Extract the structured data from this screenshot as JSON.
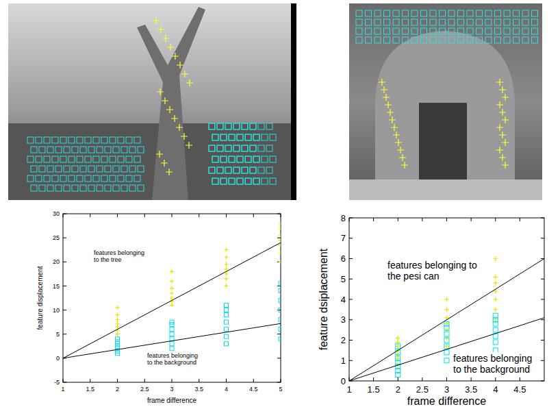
{
  "chart_data": [
    {
      "type": "scatter",
      "xlabel": "frame difference",
      "ylabel": "feature displacement",
      "xlim": [
        1,
        5
      ],
      "ylim": [
        -5,
        30
      ],
      "xticks": [
        1,
        1.5,
        2,
        2.5,
        3,
        3.5,
        4,
        4.5,
        5
      ],
      "yticks": [
        -5,
        0,
        5,
        10,
        15,
        20,
        25,
        30
      ],
      "annotations": [
        "features belonging to the tree",
        "features belonging to the background"
      ],
      "series": [
        {
          "type": "scatter",
          "color": "#e6e600",
          "marker": "plus",
          "x": [
            2,
            2,
            2,
            2,
            2,
            2,
            2,
            3,
            3,
            3,
            3,
            3,
            3,
            3,
            4,
            4,
            4,
            4,
            4,
            4,
            4,
            5,
            5,
            5,
            5,
            5,
            5,
            5
          ],
          "values": [
            5,
            5.8,
            6.5,
            7.2,
            8,
            9,
            10.5,
            11,
            11.8,
            12.5,
            13.5,
            14.5,
            16,
            18,
            15,
            16.5,
            17.5,
            18.5,
            19.5,
            21,
            22.5,
            20,
            22,
            23.5,
            24.5,
            25.5,
            27,
            28
          ]
        },
        {
          "type": "scatter",
          "color": "#00e0ee",
          "marker": "square",
          "x": [
            2,
            2,
            2,
            2,
            2,
            2,
            2,
            3,
            3,
            3,
            3,
            3,
            3,
            3,
            4,
            4,
            4,
            4,
            4,
            4,
            4,
            5,
            5,
            5,
            5,
            5,
            5,
            5
          ],
          "values": [
            1,
            1.5,
            2,
            2.5,
            3,
            3.5,
            4,
            2,
            3,
            4,
            5,
            6,
            7,
            7.5,
            3,
            4.5,
            6,
            7.5,
            9,
            10,
            11,
            4,
            6,
            8,
            10,
            12,
            14,
            15.5
          ]
        },
        {
          "type": "line",
          "color": "#000000",
          "x": [
            1,
            5
          ],
          "values": [
            0,
            24
          ]
        },
        {
          "type": "line",
          "color": "#000000",
          "x": [
            1,
            5
          ],
          "values": [
            0,
            7.2
          ]
        }
      ]
    },
    {
      "type": "scatter",
      "xlabel": "frame difference",
      "ylabel": "feature dsiplacement",
      "xlim": [
        1,
        5
      ],
      "ylim": [
        0,
        8
      ],
      "xticks": [
        1,
        1.5,
        2,
        2.5,
        3,
        3.5,
        4,
        4.5
      ],
      "yticks": [
        0,
        1,
        2,
        3,
        4,
        5,
        6,
        7,
        8
      ],
      "annotations": [
        "features belonging to the pesi can",
        "features belonging to the background"
      ],
      "series": [
        {
          "type": "scatter",
          "color": "#e6e600",
          "marker": "plus",
          "x": [
            2,
            2,
            2,
            2,
            2,
            2,
            2,
            3,
            3,
            3,
            3,
            3,
            3,
            3,
            4,
            4,
            4,
            4,
            4,
            4,
            4
          ],
          "values": [
            0.8,
            1.1,
            1.3,
            1.5,
            1.7,
            1.9,
            2.1,
            1.7,
            2.1,
            2.5,
            2.8,
            3.1,
            3.5,
            4,
            3,
            3.5,
            4,
            4.4,
            4.8,
            5.1,
            6
          ]
        },
        {
          "type": "scatter",
          "color": "#00e0ee",
          "marker": "square",
          "x": [
            2,
            2,
            2,
            2,
            2,
            2,
            2,
            3,
            3,
            3,
            3,
            3,
            3,
            3,
            4,
            4,
            4,
            4,
            4,
            4,
            4
          ],
          "values": [
            0.3,
            0.5,
            0.7,
            0.9,
            1.1,
            1.4,
            1.7,
            1,
            1.4,
            1.7,
            2,
            2.3,
            2.6,
            2.8,
            1.5,
            1.9,
            2.2,
            2.5,
            2.8,
            3,
            3.2
          ]
        },
        {
          "type": "line",
          "color": "#000000",
          "x": [
            1,
            5
          ],
          "values": [
            0,
            6
          ]
        },
        {
          "type": "line",
          "color": "#000000",
          "x": [
            1,
            5
          ],
          "values": [
            0,
            3.1
          ]
        }
      ]
    }
  ]
}
